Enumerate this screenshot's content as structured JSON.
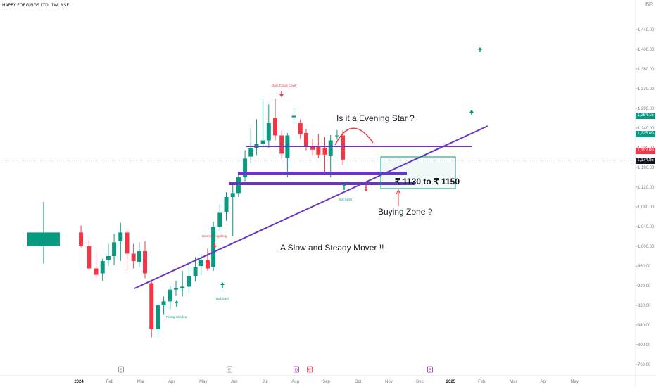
{
  "header": {
    "symbol_title": "HAPPY FORGINGS LTD, 1W, NSE",
    "currency": "INR"
  },
  "annotations": {
    "evening_star": "Is it a Evening Star ?",
    "price_range": "₹ 1130 to ₹ 1150",
    "buying_zone": "Buying Zone ?",
    "slow_steady": "A Slow and Steady Mover !!",
    "dark_cloud": "Dark Cloud Cover",
    "bearish_engulfing": "Bearish Engulfing",
    "bull_sash_1": "Bull Sash",
    "bull_sash_2": "Bull Sash",
    "rising_window": "Rising Window"
  },
  "price_tags": [
    {
      "label": "1,264.15",
      "color": "#089981"
    },
    {
      "label": "1,225.00",
      "color": "#089981"
    },
    {
      "label": "1,192.00",
      "color": "#f23645"
    },
    {
      "label": "1,174.85",
      "color": "#131722"
    }
  ],
  "event_markers": [
    "E",
    "E",
    "D",
    "E",
    "E"
  ],
  "colors": {
    "up": "#089981",
    "down": "#f23645",
    "trendline": "#6a34c6",
    "zone": "#089981",
    "axis_text": "#787b86"
  },
  "chart_data": {
    "type": "candlestick",
    "title": "HAPPY FORGINGS LTD, 1W, NSE",
    "y_axis": {
      "ticks": [
        760,
        800,
        840,
        880,
        920,
        960,
        1000,
        1040,
        1080,
        1120,
        1160,
        1200,
        1240,
        1280,
        1320,
        1360,
        1400,
        1440
      ],
      "tick_labels": [
        "760.00",
        "800.00",
        "840.00",
        "880.00",
        "920.00",
        "960.00",
        "1,000.00",
        "1,040.00",
        "1,080.00",
        "1,120.00",
        "1,160.00",
        "1,200.00",
        "1,240.00",
        "1,280.00",
        "1,320.00",
        "1,360.00",
        "1,400.00",
        "1,440.00"
      ],
      "ylim": [
        745,
        1475
      ]
    },
    "x_axis": {
      "labels": [
        "2024",
        "Feb",
        "Mar",
        "Apr",
        "May",
        "Jun",
        "Jul",
        "Aug",
        "Sep",
        "Oct",
        "Nov",
        "Dec",
        "2025",
        "Feb",
        "Mar",
        "Apr",
        "May"
      ],
      "label_weeks": [
        0,
        4.3,
        8.6,
        12.9,
        17.3,
        21.6,
        25.9,
        30.1,
        34.4,
        38.8,
        43.1,
        47.4,
        51.7,
        56,
        60.4,
        64.6,
        68.9
      ]
    },
    "candles": [
      {
        "week": -4.9,
        "o": 1000,
        "h": 1090,
        "l": 965,
        "c": 1028
      },
      {
        "week": 0.3,
        "o": 1028,
        "h": 1042,
        "l": 998,
        "c": 1000
      },
      {
        "week": 1.4,
        "o": 1000,
        "h": 1012,
        "l": 952,
        "c": 955
      },
      {
        "week": 2.4,
        "o": 955,
        "h": 985,
        "l": 935,
        "c": 942
      },
      {
        "week": 3.3,
        "o": 945,
        "h": 975,
        "l": 930,
        "c": 970
      },
      {
        "week": 4.1,
        "o": 972,
        "h": 1005,
        "l": 960,
        "c": 980
      },
      {
        "week": 4.9,
        "o": 980,
        "h": 1025,
        "l": 962,
        "c": 1008
      },
      {
        "week": 5.8,
        "o": 1010,
        "h": 1048,
        "l": 970,
        "c": 1028
      },
      {
        "week": 6.7,
        "o": 1028,
        "h": 1036,
        "l": 950,
        "c": 985
      },
      {
        "week": 7.6,
        "o": 985,
        "h": 1005,
        "l": 955,
        "c": 970
      },
      {
        "week": 8.4,
        "o": 968,
        "h": 1008,
        "l": 958,
        "c": 990
      },
      {
        "week": 9.2,
        "o": 990,
        "h": 1010,
        "l": 935,
        "c": 945
      },
      {
        "week": 10.1,
        "o": 925,
        "h": 932,
        "l": 815,
        "c": 832
      },
      {
        "week": 11.0,
        "o": 832,
        "h": 885,
        "l": 812,
        "c": 880
      },
      {
        "week": 11.8,
        "o": 880,
        "h": 898,
        "l": 862,
        "c": 888
      },
      {
        "week": 12.7,
        "o": 888,
        "h": 920,
        "l": 872,
        "c": 912
      },
      {
        "week": 13.5,
        "o": 912,
        "h": 930,
        "l": 900,
        "c": 915
      },
      {
        "week": 14.4,
        "o": 915,
        "h": 950,
        "l": 898,
        "c": 918
      },
      {
        "week": 15.3,
        "o": 918,
        "h": 968,
        "l": 905,
        "c": 940
      },
      {
        "week": 16.2,
        "o": 940,
        "h": 978,
        "l": 928,
        "c": 958
      },
      {
        "week": 17.0,
        "o": 960,
        "h": 985,
        "l": 942,
        "c": 972
      },
      {
        "week": 17.9,
        "o": 972,
        "h": 995,
        "l": 950,
        "c": 955
      },
      {
        "week": 18.7,
        "o": 958,
        "h": 1050,
        "l": 950,
        "c": 1040
      },
      {
        "week": 19.6,
        "o": 1040,
        "h": 1085,
        "l": 1030,
        "c": 1068
      },
      {
        "week": 20.5,
        "o": 1070,
        "h": 1110,
        "l": 1052,
        "c": 1100
      },
      {
        "week": 21.4,
        "o": 1100,
        "h": 1125,
        "l": 1020,
        "c": 1108
      },
      {
        "week": 22.2,
        "o": 1108,
        "h": 1148,
        "l": 1100,
        "c": 1140
      },
      {
        "week": 23.1,
        "o": 1140,
        "h": 1195,
        "l": 1132,
        "c": 1178
      },
      {
        "week": 23.9,
        "o": 1182,
        "h": 1240,
        "l": 1170,
        "c": 1200
      },
      {
        "week": 24.7,
        "o": 1200,
        "h": 1258,
        "l": 1185,
        "c": 1208
      },
      {
        "week": 25.6,
        "o": 1208,
        "h": 1300,
        "l": 1198,
        "c": 1215
      },
      {
        "week": 26.4,
        "o": 1215,
        "h": 1288,
        "l": 1200,
        "c": 1250
      },
      {
        "week": 27.3,
        "o": 1260,
        "h": 1300,
        "l": 1215,
        "c": 1225
      },
      {
        "week": 28.2,
        "o": 1225,
        "h": 1235,
        "l": 1178,
        "c": 1188
      },
      {
        "week": 29.0,
        "o": 1180,
        "h": 1230,
        "l": 1140,
        "c": 1225
      },
      {
        "week": 29.9,
        "o": 1262,
        "h": 1280,
        "l": 1250,
        "c": 1265
      },
      {
        "week": 30.8,
        "o": 1250,
        "h": 1258,
        "l": 1218,
        "c": 1228
      },
      {
        "week": 31.6,
        "o": 1230,
        "h": 1238,
        "l": 1195,
        "c": 1202
      },
      {
        "week": 32.5,
        "o": 1202,
        "h": 1218,
        "l": 1185,
        "c": 1196
      },
      {
        "week": 33.3,
        "o": 1202,
        "h": 1228,
        "l": 1180,
        "c": 1186
      },
      {
        "week": 34.2,
        "o": 1200,
        "h": 1222,
        "l": 1150,
        "c": 1186
      },
      {
        "week": 35.0,
        "o": 1184,
        "h": 1226,
        "l": 1140,
        "c": 1215
      },
      {
        "week": 35.9,
        "o": 1225,
        "h": 1236,
        "l": 1218,
        "c": 1225
      },
      {
        "week": 36.7,
        "o": 1225,
        "h": 1235,
        "l": 1165,
        "c": 1176
      }
    ]
  }
}
